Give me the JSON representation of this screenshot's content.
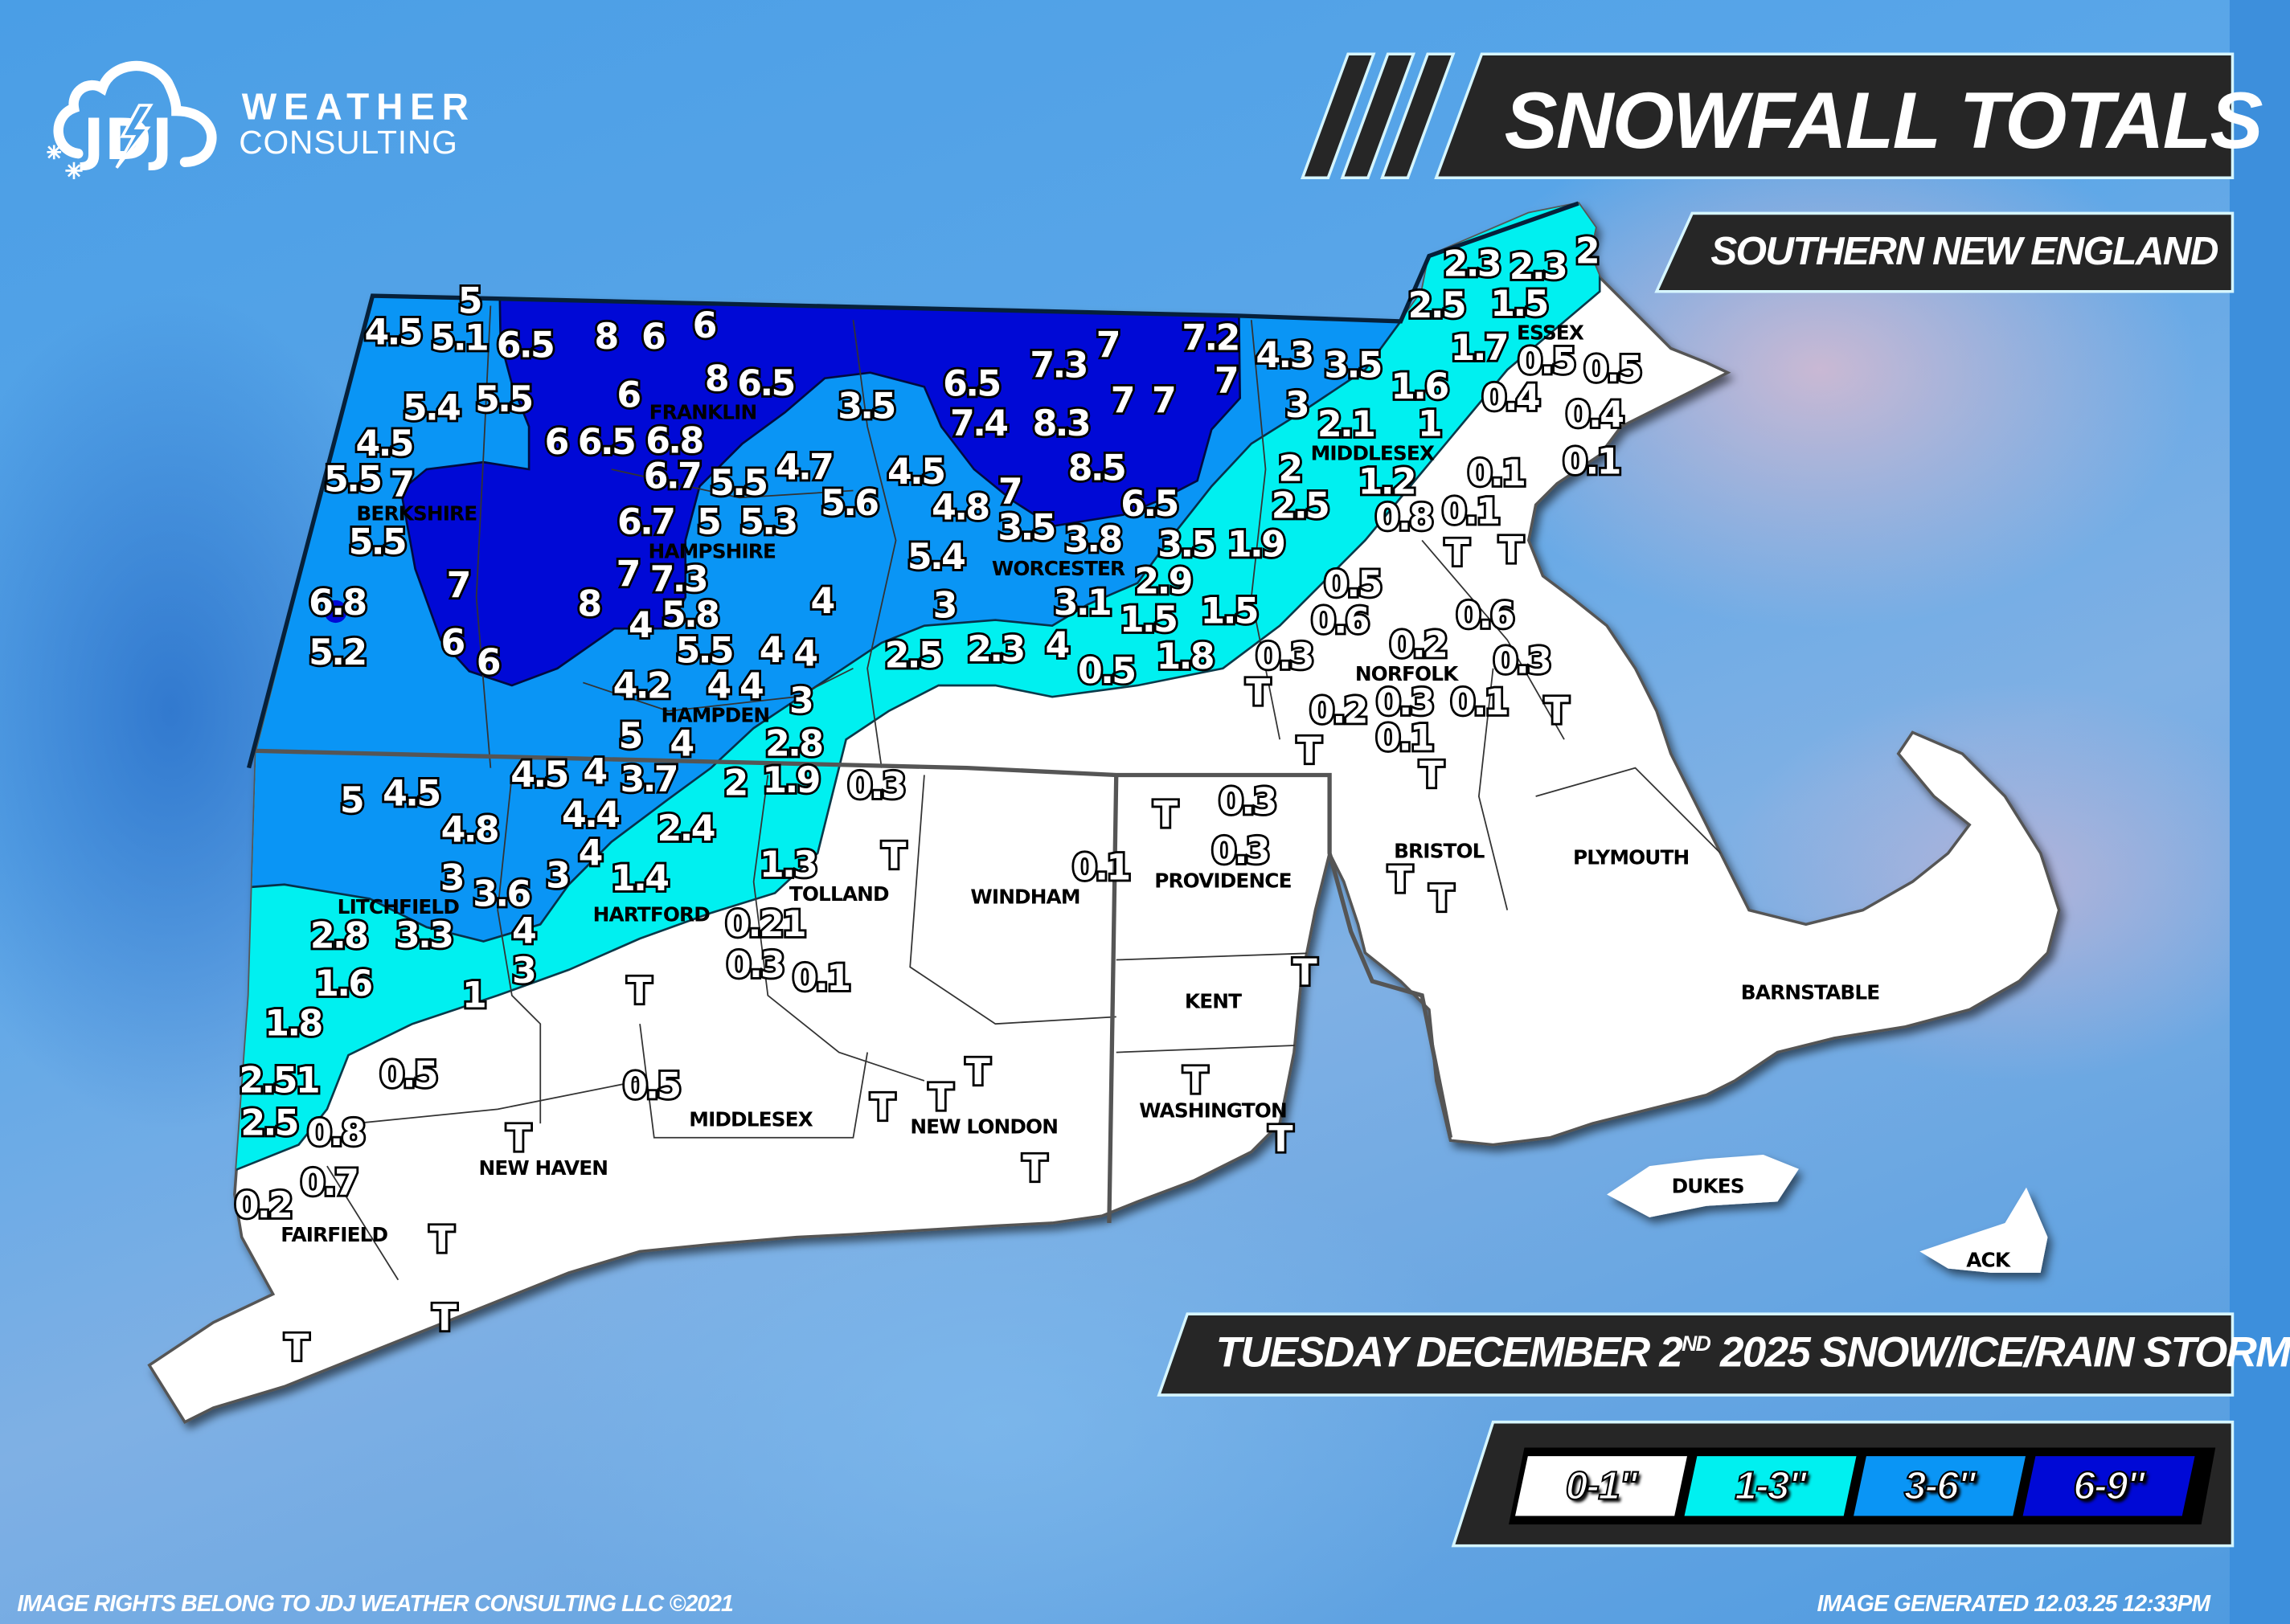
{
  "logo": {
    "mark": "JDJ",
    "line1": "WEATHER",
    "line2": "CONSULTING"
  },
  "header": {
    "title": "SNOWFALL TOTALS",
    "region": "SOUTHERN NEW ENGLAND",
    "storm_prefix": "TUESDAY DECEMBER 2",
    "storm_superscript": "ND",
    "storm_suffix": " 2025 SNOW/ICE/RAIN STORM"
  },
  "legend": [
    {
      "label": "0-1\"",
      "color": "#ffffff"
    },
    {
      "label": "1-3\"",
      "color": "#00f0f0"
    },
    {
      "label": "3-6\"",
      "color": "#0a95f5"
    },
    {
      "label": "6-9\"",
      "color": "#0009d6"
    }
  ],
  "footer": {
    "rights": "IMAGE RIGHTS BELONG TO JDJ WEATHER CONSULTING LLC ©2021",
    "generated": "IMAGE GENERATED 12.03.25 12:33PM"
  },
  "map": {
    "counties": [
      "BERKSHIRE",
      "FRANKLIN",
      "HAMPSHIRE",
      "HAMPDEN",
      "WORCESTER",
      "MIDDLESEX",
      "ESSEX",
      "NORFOLK",
      "BRISTOL",
      "PLYMOUTH",
      "BARNSTABLE",
      "DUKES",
      "ACK",
      "LITCHFIELD",
      "HARTFORD",
      "TOLLAND",
      "WINDHAM",
      "PROVIDENCE",
      "KENT",
      "WASHINGTON",
      "NEW LONDON",
      "MIDDLESEX",
      "NEW HAVEN",
      "FAIRFIELD"
    ],
    "reports": [
      "5",
      "4.5",
      "5.1",
      "6.5",
      "8",
      "6",
      "6",
      "5.4",
      "5.5",
      "6",
      "8",
      "6.5",
      "3.5",
      "6.5",
      "7.3",
      "7",
      "7.2",
      "7",
      "4.3",
      "3.5",
      "2.3",
      "2.3",
      "2",
      "2.5",
      "1.5",
      "1.7",
      "0.5",
      "0.5",
      "1.6",
      "0.4",
      "0.4",
      "3",
      "2.1",
      "1",
      "0.1",
      "4.5",
      "6",
      "6.5",
      "6.8",
      "7.4",
      "8.3",
      "7",
      "7",
      "5.5",
      "7",
      "6.7",
      "5.5",
      "4.7",
      "4.5",
      "5.6",
      "4.8",
      "7",
      "8.5",
      "6.5",
      "2",
      "1.2",
      "0.1",
      "2.5",
      "0.8",
      "0.1",
      "5.5",
      "6.7",
      "5",
      "5.3",
      "3.5",
      "3.8",
      "3.5",
      "1.9",
      "T",
      "T",
      "5.4",
      "7",
      "7.3",
      "7",
      "2.9",
      "0.5",
      "6.8",
      "8",
      "5.8",
      "4",
      "3",
      "3.1",
      "1.5",
      "1.5",
      "0.6",
      "0.6",
      "4",
      "5.2",
      "6",
      "6",
      "5.5",
      "4",
      "4",
      "2.5",
      "2.3",
      "4",
      "0.5",
      "1.8",
      "0.3",
      "0.2",
      "0.3",
      "T",
      "0.3",
      "0.1",
      "T",
      "4.2",
      "4",
      "3",
      "4",
      "5",
      "4",
      "2.8",
      "0.2",
      "0.1",
      "T",
      "T",
      "4.5",
      "4",
      "3.7",
      "2",
      "1.9",
      "0.3",
      "5",
      "4.5",
      "4.8",
      "4.4",
      "2.4",
      "4",
      "3",
      "1.4",
      "1.3",
      "T",
      "3",
      "3.6",
      "2.8",
      "3.3",
      "4",
      "0.21",
      "3",
      "1.6",
      "1",
      "T",
      "0.3",
      "0.1",
      "1.8",
      "2.51",
      "0.5",
      "0.5",
      "2.5",
      "0.8",
      "T",
      "0.7",
      "T",
      "T",
      "T",
      "T",
      "0.2",
      "T",
      "T",
      "T",
      "T",
      "0.3",
      "0.1",
      "0.3",
      "T",
      "T",
      "T",
      "T",
      "T"
    ]
  }
}
